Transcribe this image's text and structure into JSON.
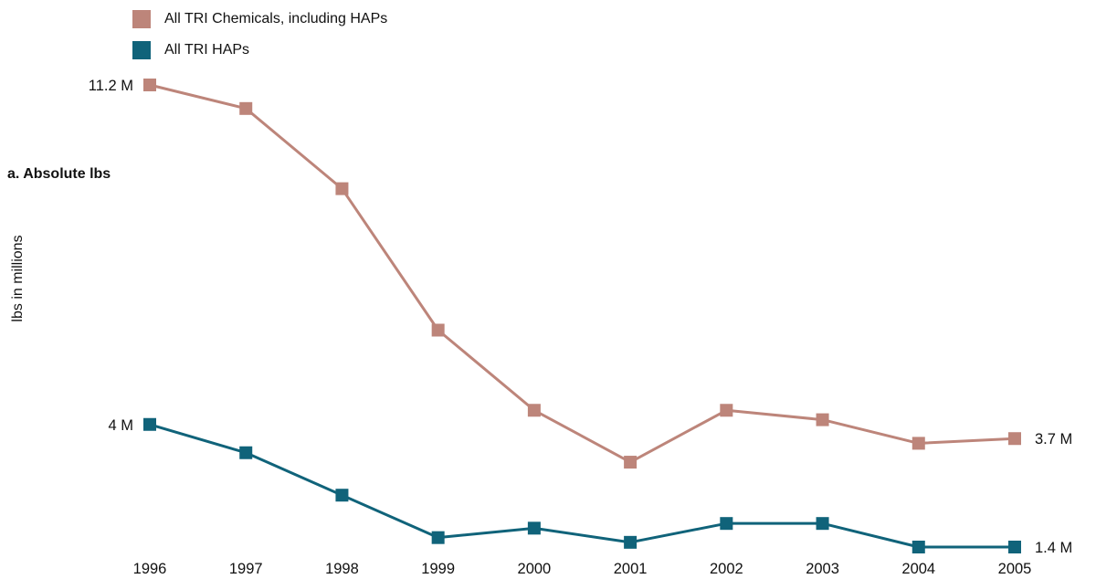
{
  "chart_data": {
    "type": "line",
    "subtitle": "a. Absolute lbs",
    "ylabel": "lbs in millions",
    "xlabel": "",
    "categories": [
      "1996",
      "1997",
      "1998",
      "1999",
      "2000",
      "2001",
      "2002",
      "2003",
      "2004",
      "2005"
    ],
    "ylim": [
      0,
      12
    ],
    "grid": false,
    "legend_position": "top-left",
    "series": [
      {
        "name": "All TRI Chemicals, including HAPs",
        "color": "#bd857a",
        "values": [
          11.2,
          10.7,
          9.0,
          6.0,
          4.3,
          3.2,
          4.3,
          4.1,
          3.6,
          3.7
        ],
        "start_label": "11.2 M",
        "end_label": "3.7 M"
      },
      {
        "name": "All TRI HAPs",
        "color": "#10637a",
        "values": [
          4.0,
          3.4,
          2.5,
          1.6,
          1.8,
          1.5,
          1.9,
          1.9,
          1.4,
          1.4
        ],
        "start_label": "4 M",
        "end_label": "1.4 M"
      }
    ]
  }
}
